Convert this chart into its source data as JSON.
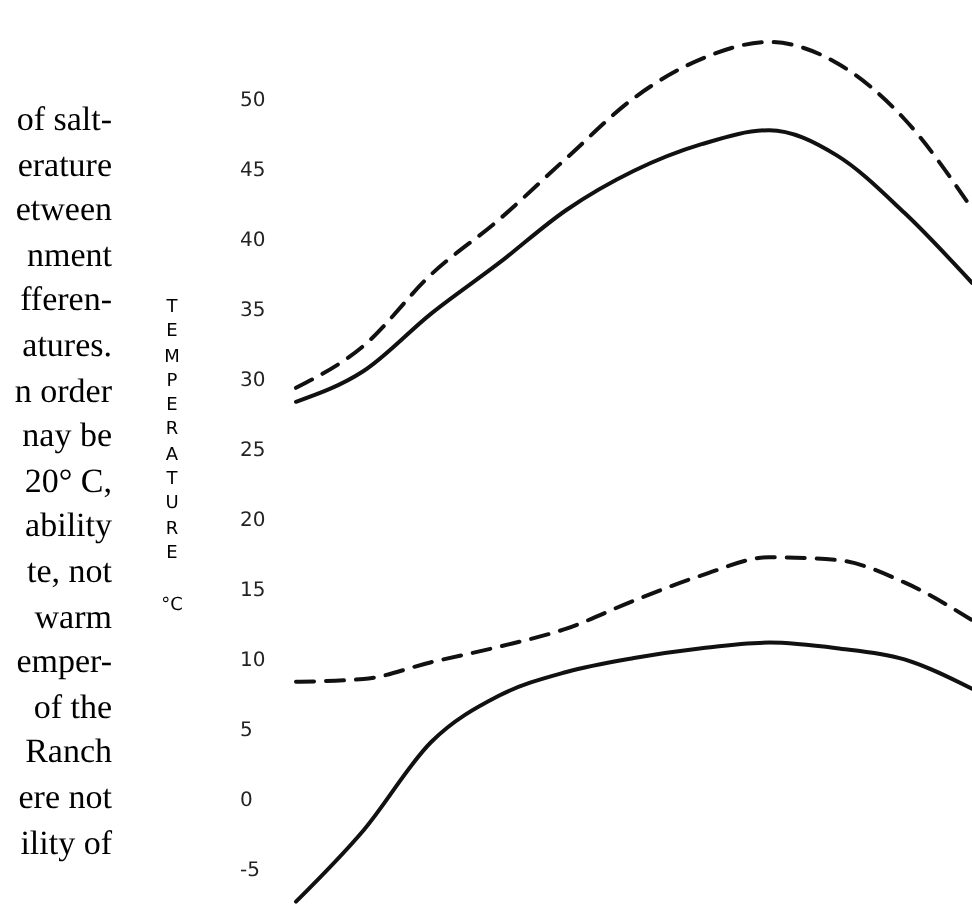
{
  "chart_data": {
    "type": "line",
    "ylabel": "TEMPERATURE °C",
    "categories": [
      null,
      null,
      null,
      null,
      null,
      null,
      null,
      null,
      null,
      null,
      null
    ],
    "ylim": [
      -8,
      57
    ],
    "yticks": [
      -5,
      0,
      5,
      10,
      15,
      20,
      25,
      30,
      35,
      40,
      45,
      50
    ],
    "tick_labels": "y",
    "marker": "none",
    "series": [
      {
        "color": "#111111",
        "line_style": "dashed",
        "values": [
          29.3,
          32.3,
          37.4,
          41.3,
          45.7,
          50.0,
          52.8,
          54.0,
          52.5,
          48.5,
          42.1
        ]
      },
      {
        "color": "#111111",
        "line_style": "solid",
        "values": [
          28.3,
          30.5,
          34.6,
          38.2,
          42.0,
          44.8,
          46.7,
          47.7,
          45.9,
          41.8,
          36.8
        ]
      },
      {
        "color": "#111111",
        "line_style": "dashed",
        "values": [
          8.3,
          8.5,
          9.7,
          10.8,
          12.1,
          14.1,
          15.9,
          17.2,
          17.0,
          15.4,
          12.7
        ]
      },
      {
        "color": "#111111",
        "line_style": "solid",
        "values": [
          -7.4,
          -2.3,
          4.0,
          7.3,
          9.0,
          10.0,
          10.7,
          11.1,
          10.7,
          9.9,
          7.8
        ]
      }
    ],
    "annotations": [
      "of salt-",
      "erature",
      "etween",
      "nment",
      "fferen-",
      "atures.",
      "n order",
      "nay be",
      "20° C,",
      "ability",
      "te, not",
      "warm",
      "emper-",
      "of the",
      "Ranch",
      "ere not",
      "ility of"
    ]
  }
}
